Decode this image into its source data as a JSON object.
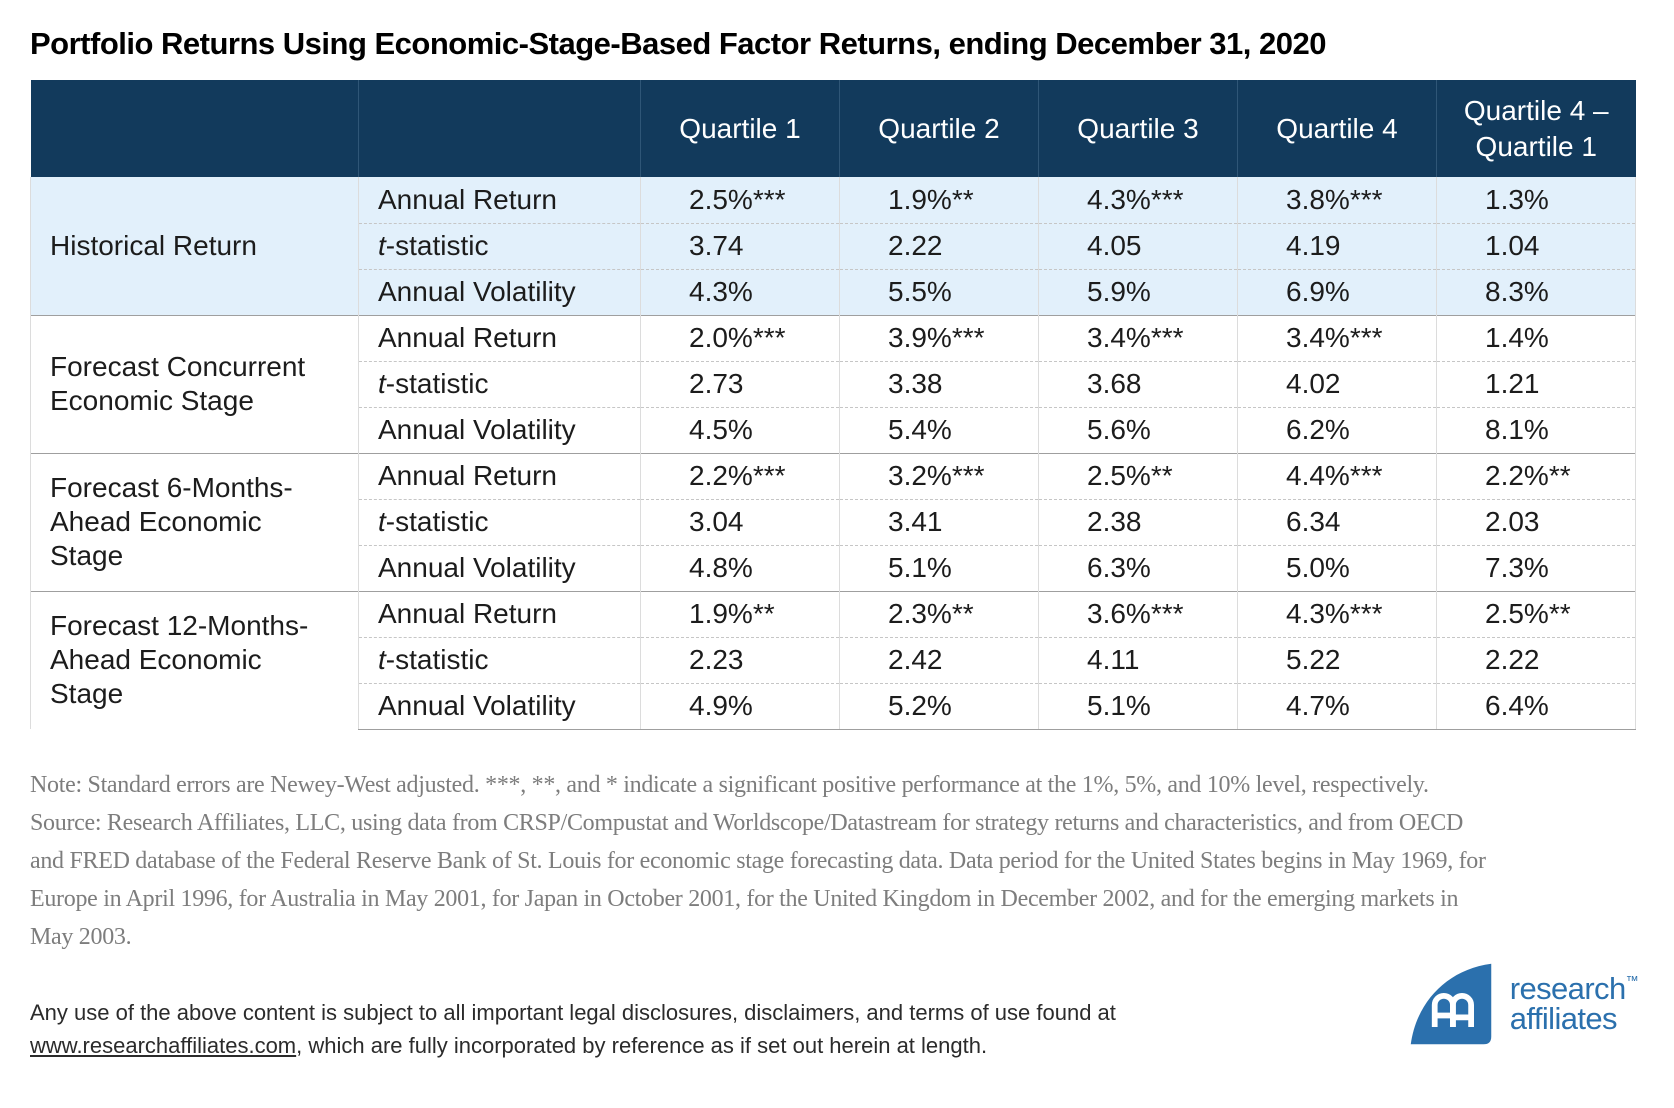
{
  "title": "Portfolio Returns Using Economic-Stage-Based Factor Returns, ending December 31, 2020",
  "colors": {
    "header_bg": "#123a5c",
    "tint_row_bg": "#e2f0fb",
    "brand_blue": "#2b70ad"
  },
  "chart_data": {
    "type": "table",
    "title": "Portfolio Returns Using Economic-Stage-Based Factor Returns, ending December 31, 2020",
    "column_headers": [
      "Quartile 1",
      "Quartile 2",
      "Quartile 3",
      "Quartile 4",
      "Quartile 4 –\nQuartile 1"
    ],
    "row_groups": [
      {
        "label": "Historical Return",
        "rows": [
          {
            "metric": {
              "italic": "",
              "text": "Annual Return"
            },
            "values": [
              "2.5%***",
              "1.9%**",
              "4.3%***",
              "3.8%***",
              "1.3%"
            ]
          },
          {
            "metric": {
              "italic": "t",
              "text": "-statistic"
            },
            "values": [
              "3.74",
              "2.22",
              "4.05",
              "4.19",
              "1.04"
            ]
          },
          {
            "metric": {
              "italic": "",
              "text": "Annual Volatility"
            },
            "values": [
              "4.3%",
              "5.5%",
              "5.9%",
              "6.9%",
              "8.3%"
            ]
          }
        ]
      },
      {
        "label": "Forecast Concurrent\nEconomic Stage",
        "rows": [
          {
            "metric": {
              "italic": "",
              "text": "Annual Return"
            },
            "values": [
              "2.0%***",
              "3.9%***",
              "3.4%***",
              "3.4%***",
              "1.4%"
            ]
          },
          {
            "metric": {
              "italic": "t",
              "text": "-statistic"
            },
            "values": [
              "2.73",
              "3.38",
              "3.68",
              "4.02",
              "1.21"
            ]
          },
          {
            "metric": {
              "italic": "",
              "text": "Annual Volatility"
            },
            "values": [
              "4.5%",
              "5.4%",
              "5.6%",
              "6.2%",
              "8.1%"
            ]
          }
        ]
      },
      {
        "label": "Forecast 6-Months-\nAhead Economic\nStage",
        "rows": [
          {
            "metric": {
              "italic": "",
              "text": "Annual Return"
            },
            "values": [
              "2.2%***",
              "3.2%***",
              "2.5%**",
              "4.4%***",
              "2.2%**"
            ]
          },
          {
            "metric": {
              "italic": "t",
              "text": "-statistic"
            },
            "values": [
              "3.04",
              "3.41",
              "2.38",
              "6.34",
              "2.03"
            ]
          },
          {
            "metric": {
              "italic": "",
              "text": "Annual Volatility"
            },
            "values": [
              "4.8%",
              "5.1%",
              "6.3%",
              "5.0%",
              "7.3%"
            ]
          }
        ]
      },
      {
        "label": "Forecast 12-Months-\nAhead Economic\nStage",
        "rows": [
          {
            "metric": {
              "italic": "",
              "text": "Annual Return"
            },
            "values": [
              "1.9%**",
              "2.3%**",
              "3.6%***",
              "4.3%***",
              "2.5%**"
            ]
          },
          {
            "metric": {
              "italic": "t",
              "text": "-statistic"
            },
            "values": [
              "2.23",
              "2.42",
              "4.11",
              "5.22",
              "2.22"
            ]
          },
          {
            "metric": {
              "italic": "",
              "text": "Annual Volatility"
            },
            "values": [
              "4.9%",
              "5.2%",
              "5.1%",
              "4.7%",
              "6.4%"
            ]
          }
        ]
      }
    ]
  },
  "note_lines": [
    "Note: Standard errors are Newey-West adjusted. ***, **, and * indicate a significant positive performance at the 1%, 5%, and 10% level, respectively.",
    "Source: Research Affiliates, LLC, using data from CRSP/Compustat and Worldscope/Datastream for strategy returns and characteristics, and from OECD",
    "and FRED database of the Federal Reserve Bank of St. Louis for economic stage forecasting data. Data period for the United States begins in May 1969, for",
    "Europe in April 1996, for Australia in May 2001, for Japan in October 2001, for the United Kingdom in December 2002, and for the emerging markets in",
    "May 2003."
  ],
  "footer": {
    "legal_line1": "Any use of the above content is subject to all important legal disclosures, disclaimers, and terms of use found at",
    "legal_link": "www.researchaffiliates.com",
    "legal_line2_rest": ", which are fully incorporated by reference as if set out herein at length."
  },
  "logo": {
    "monogram": "RA",
    "line1": "research",
    "trademark": "™",
    "line2": "affiliates"
  }
}
